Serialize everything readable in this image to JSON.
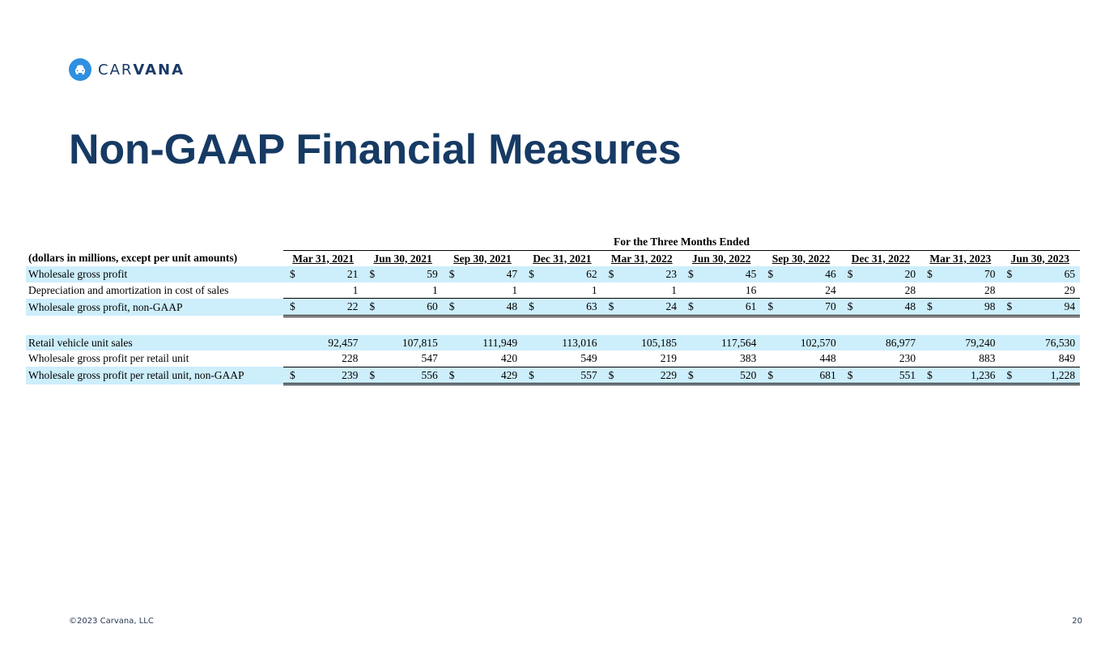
{
  "brand": {
    "name_part1": "CAR",
    "name_part2": "VANA",
    "color": "#2f8fe0"
  },
  "title": "Non-GAAP Financial Measures",
  "table": {
    "group_header": "For the Three Months Ended",
    "label_header": "(dollars in millions, except per unit amounts)",
    "periods": [
      "Mar 31, 2021",
      "Jun 30, 2021",
      "Sep 30, 2021",
      "Dec 31, 2021",
      "Mar 31, 2022",
      "Jun 30, 2022",
      "Sep 30, 2022",
      "Dec 31, 2022",
      "Mar 31, 2023",
      "Jun 30, 2023"
    ],
    "rows": [
      {
        "label": "Wholesale gross profit",
        "currency": true,
        "values": [
          "21",
          "59",
          "47",
          "62",
          "23",
          "45",
          "46",
          "20",
          "70",
          "65"
        ]
      },
      {
        "label": "Depreciation and amortization in cost of sales",
        "currency": false,
        "values": [
          "1",
          "1",
          "1",
          "1",
          "1",
          "16",
          "24",
          "28",
          "28",
          "29"
        ]
      },
      {
        "label": "Wholesale gross profit, non-GAAP",
        "currency": true,
        "values": [
          "22",
          "60",
          "48",
          "63",
          "24",
          "61",
          "70",
          "48",
          "98",
          "94"
        ]
      },
      {
        "label": "Retail vehicle unit sales",
        "currency": false,
        "values": [
          "92,457",
          "107,815",
          "111,949",
          "113,016",
          "105,185",
          "117,564",
          "102,570",
          "86,977",
          "79,240",
          "76,530"
        ]
      },
      {
        "label": "Wholesale gross profit per retail unit",
        "currency": false,
        "values": [
          "228",
          "547",
          "420",
          "549",
          "219",
          "383",
          "448",
          "230",
          "883",
          "849"
        ]
      },
      {
        "label": "Wholesale gross profit per retail unit, non-GAAP",
        "currency": true,
        "values": [
          "239",
          "556",
          "429",
          "557",
          "229",
          "520",
          "681",
          "551",
          "1,236",
          "1,228"
        ]
      }
    ],
    "currency_symbol": "$"
  },
  "footer": {
    "copyright": "©2023 Carvana, LLC",
    "page_number": "20"
  }
}
